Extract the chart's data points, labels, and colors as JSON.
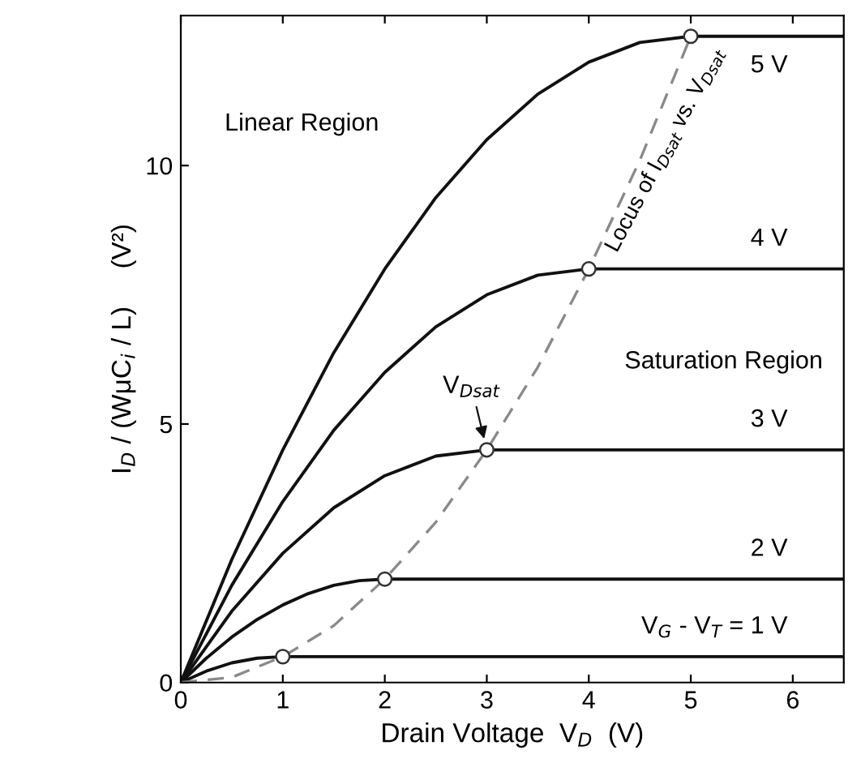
{
  "chart_data": {
    "type": "line",
    "xlabel": "Drain Voltage  V$_{D}$  (V)",
    "ylabel": "I$_{D}$ / (WμC$_{i}$ / L)     (V²)",
    "xlim": [
      0,
      6.5
    ],
    "ylim": [
      0,
      12.9
    ],
    "xticks": [
      0,
      1,
      2,
      3,
      4,
      5,
      6
    ],
    "yticks": [
      0,
      5,
      10
    ],
    "grid": false,
    "legend": false,
    "series": [
      {
        "name": "V$_{G}$ - V$_{T}$ = 1 V",
        "color": "#111111",
        "x": [
          0,
          0.25,
          0.5,
          0.75,
          1,
          6.5
        ],
        "values": [
          0,
          0.22,
          0.38,
          0.47,
          0.5,
          0.5
        ]
      },
      {
        "name": "2 V",
        "color": "#111111",
        "x": [
          0,
          0.25,
          0.5,
          0.75,
          1,
          1.25,
          1.5,
          1.75,
          2,
          6.5
        ],
        "values": [
          0,
          0.47,
          0.88,
          1.22,
          1.5,
          1.72,
          1.88,
          1.97,
          2,
          2
        ]
      },
      {
        "name": "3 V",
        "color": "#111111",
        "x": [
          0,
          0.5,
          1,
          1.5,
          2,
          2.5,
          3,
          6.5
        ],
        "values": [
          0,
          1.38,
          2.5,
          3.38,
          4,
          4.38,
          4.5,
          4.5
        ]
      },
      {
        "name": "4 V",
        "color": "#111111",
        "x": [
          0,
          0.5,
          1,
          1.5,
          2,
          2.5,
          3,
          3.5,
          4,
          6.5
        ],
        "values": [
          0,
          1.88,
          3.5,
          4.88,
          6,
          6.88,
          7.5,
          7.88,
          8,
          8
        ]
      },
      {
        "name": "5 V",
        "color": "#111111",
        "x": [
          0,
          0.5,
          1,
          1.5,
          2,
          2.5,
          3,
          3.5,
          4,
          4.5,
          5,
          6.5
        ],
        "values": [
          0,
          2.38,
          4.5,
          6.38,
          8,
          9.38,
          10.5,
          11.38,
          12,
          12.38,
          12.5,
          12.5
        ]
      },
      {
        "color": "#8a8a8a",
        "line_style": "dashed",
        "x": [
          0,
          0.5,
          1,
          1.5,
          2,
          2.5,
          3,
          3.5,
          4,
          4.5,
          5
        ],
        "values": [
          0,
          0.1,
          0.5,
          1.1,
          2,
          3.1,
          4.5,
          6.1,
          8,
          10.1,
          12.5
        ]
      },
      {
        "type": "scatter",
        "marker": "circle",
        "color": "#ffffff",
        "x": [
          1,
          2,
          3,
          4,
          5
        ],
        "values": [
          0.5,
          2,
          4.5,
          8,
          12.5
        ]
      }
    ],
    "annotations": [
      "Linear Region",
      "Saturation Region",
      "Locus of I$_{Dsat}$ vs. V$_{Dsat}$",
      {
        "text": "V$_{Dsat}$",
        "x": 3,
        "y": 4.5
      }
    ]
  }
}
